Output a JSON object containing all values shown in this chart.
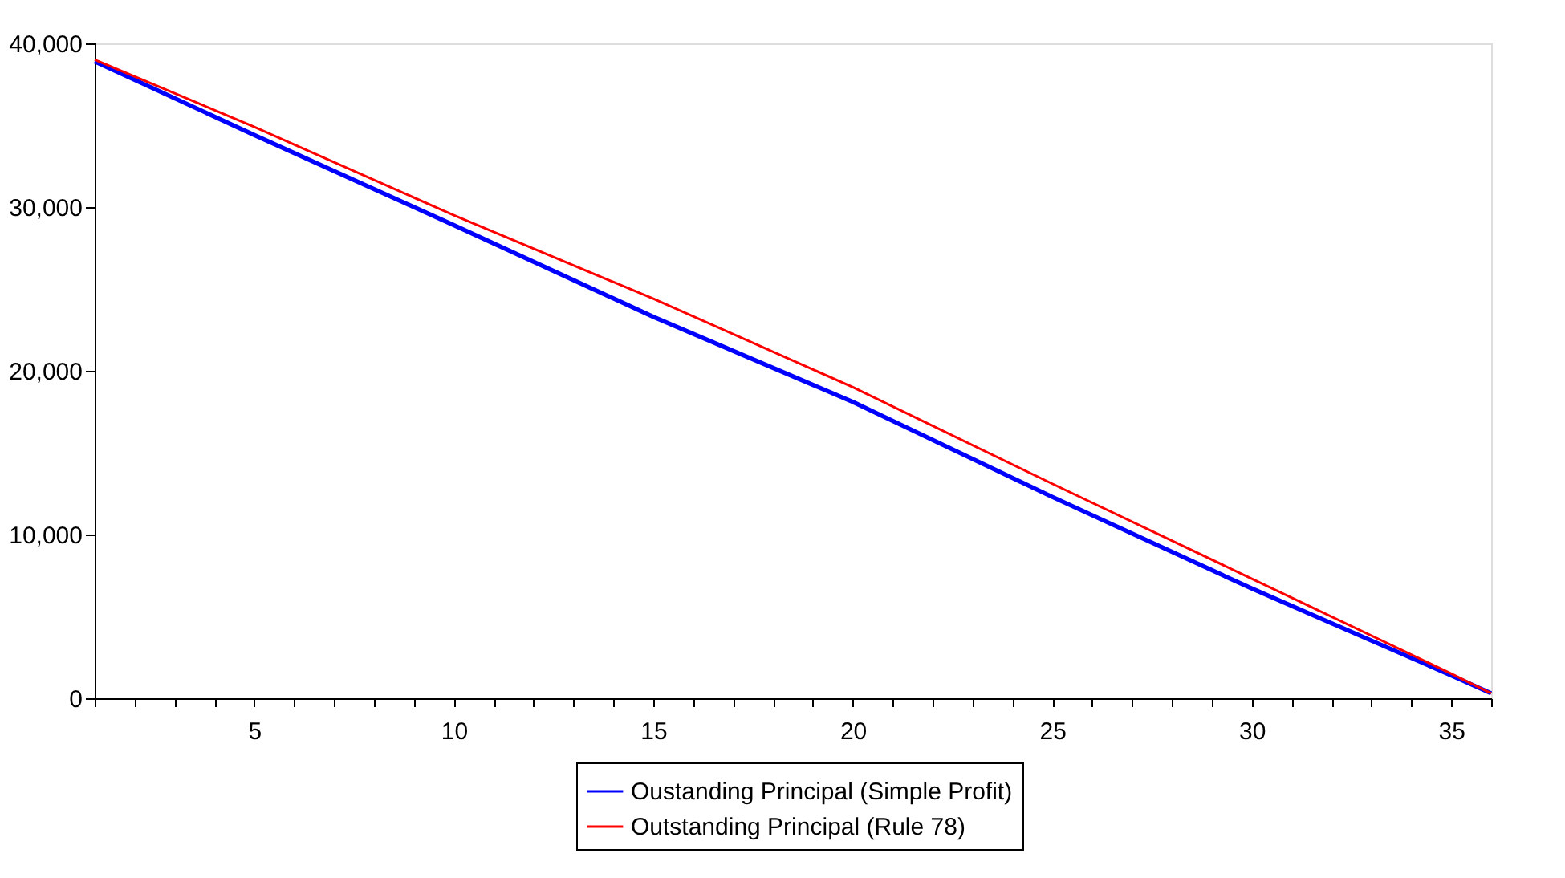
{
  "chart_data": {
    "type": "line",
    "x": [
      1,
      5,
      10,
      15,
      20,
      25,
      30,
      35,
      36
    ],
    "series": [
      {
        "name": "Oustanding Principal (Simple Profit)",
        "color": "#0000ff",
        "values": [
          38900,
          34400,
          28900,
          23300,
          18100,
          12300,
          6700,
          1400,
          300
        ]
      },
      {
        "name": "Outstanding Principal (Rule 78)",
        "color": "#ff0000",
        "values": [
          39000,
          34900,
          29500,
          24400,
          19000,
          13100,
          7300,
          1500,
          300
        ]
      }
    ],
    "xlim": [
      1,
      36
    ],
    "xticks": [
      {
        "value": 1,
        "label": null
      },
      {
        "value": 2,
        "label": null
      },
      {
        "value": 3,
        "label": null
      },
      {
        "value": 4,
        "label": null
      },
      5,
      {
        "value": 6,
        "label": null
      },
      {
        "value": 7,
        "label": null
      },
      {
        "value": 8,
        "label": null
      },
      {
        "value": 9,
        "label": null
      },
      10,
      {
        "value": 11,
        "label": null
      },
      {
        "value": 12,
        "label": null
      },
      {
        "value": 13,
        "label": null
      },
      {
        "value": 14,
        "label": null
      },
      15,
      {
        "value": 16,
        "label": null
      },
      {
        "value": 17,
        "label": null
      },
      {
        "value": 18,
        "label": null
      },
      {
        "value": 19,
        "label": null
      },
      20,
      {
        "value": 21,
        "label": null
      },
      {
        "value": 22,
        "label": null
      },
      {
        "value": 23,
        "label": null
      },
      {
        "value": 24,
        "label": null
      },
      25,
      {
        "value": 26,
        "label": null
      },
      {
        "value": 27,
        "label": null
      },
      {
        "value": 28,
        "label": null
      },
      {
        "value": 29,
        "label": null
      },
      30,
      {
        "value": 31,
        "label": null
      },
      {
        "value": 32,
        "label": null
      },
      {
        "value": 33,
        "label": null
      },
      {
        "value": 34,
        "label": null
      },
      35,
      {
        "value": 36,
        "label": null
      }
    ],
    "ylim": [
      0,
      40000
    ],
    "yticks": [
      0,
      {
        "value": 10000,
        "label": "10,000"
      },
      {
        "value": 20000,
        "label": "20,000"
      },
      {
        "value": 30000,
        "label": "30,000"
      },
      {
        "value": 40000,
        "label": "40,000"
      }
    ],
    "grid": false,
    "legend": "bottom",
    "line_style": "solid",
    "marker": "none"
  }
}
